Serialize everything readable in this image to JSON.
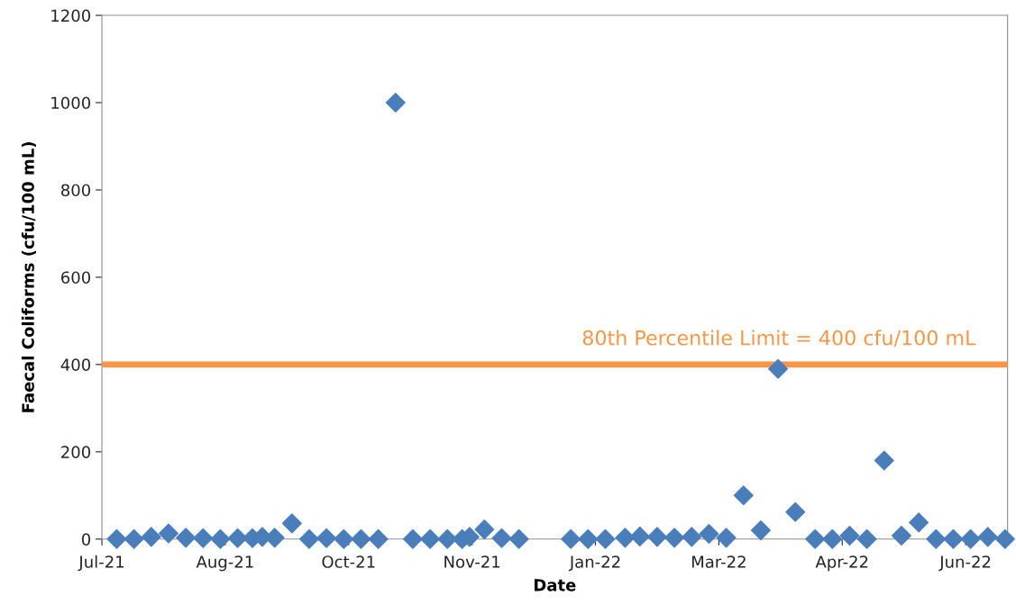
{
  "chart_data": {
    "type": "scatter",
    "xlabel": "Date",
    "ylabel": "Faecal Coliforms (cfu/100 mL)",
    "x": [
      "2021-07-07",
      "2021-07-14",
      "2021-07-21",
      "2021-07-28",
      "2021-08-04",
      "2021-08-11",
      "2021-08-18",
      "2021-08-25",
      "2021-08-31",
      "2021-09-04",
      "2021-09-09",
      "2021-09-16",
      "2021-09-23",
      "2021-09-30",
      "2021-10-07",
      "2021-10-14",
      "2021-10-21",
      "2021-10-28",
      "2021-11-04",
      "2021-11-11",
      "2021-11-18",
      "2021-11-24",
      "2021-11-27",
      "2021-12-03",
      "2021-12-10",
      "2021-12-17",
      "2022-01-07",
      "2022-01-14",
      "2022-01-21",
      "2022-01-29",
      "2022-02-04",
      "2022-02-11",
      "2022-02-18",
      "2022-02-25",
      "2022-03-04",
      "2022-03-11",
      "2022-03-18",
      "2022-03-25",
      "2022-04-01",
      "2022-04-08",
      "2022-04-16",
      "2022-04-23",
      "2022-04-30",
      "2022-05-07",
      "2022-05-14",
      "2022-05-21",
      "2022-05-28",
      "2022-06-04",
      "2022-06-11",
      "2022-06-18",
      "2022-06-25",
      "2022-07-02"
    ],
    "series": [
      {
        "color": "#4a7ebb",
        "values": [
          0,
          0,
          5,
          13,
          3,
          2,
          0,
          2,
          2,
          5,
          3,
          36,
          0,
          2,
          0,
          0,
          0,
          1000,
          0,
          0,
          0,
          0,
          5,
          22,
          2,
          0,
          0,
          0,
          0,
          3,
          6,
          5,
          3,
          5,
          12,
          3,
          100,
          20,
          390,
          62,
          0,
          0,
          8,
          0,
          180,
          8,
          38,
          0,
          0,
          0,
          5,
          0
        ]
      }
    ],
    "marker": "diamond",
    "grid": false,
    "xlim": [
      "2021-07-01",
      "2022-07-03"
    ],
    "xticks": [
      {
        "value": "2021-07-01",
        "label": "Jul-21"
      },
      {
        "value": "2021-08-20",
        "label": "Aug-21"
      },
      {
        "value": "2021-10-09",
        "label": "Oct-21"
      },
      {
        "value": "2021-11-28",
        "label": "Nov-21"
      },
      {
        "value": "2022-01-17",
        "label": "Jan-22"
      },
      {
        "value": "2022-03-08",
        "label": "Mar-22"
      },
      {
        "value": "2022-04-27",
        "label": "Apr-22"
      },
      {
        "value": "2022-06-16",
        "label": "Jun-22"
      }
    ],
    "ylim": [
      0,
      1200
    ],
    "yticks": [
      0,
      200,
      400,
      600,
      800,
      1000,
      1200
    ],
    "ref_lines": [
      {
        "axis": "y",
        "value": 400,
        "label": "80th Percentile Limit = 400 cfu/100 mL",
        "color": "#f79646",
        "line_style": "solid"
      }
    ]
  }
}
